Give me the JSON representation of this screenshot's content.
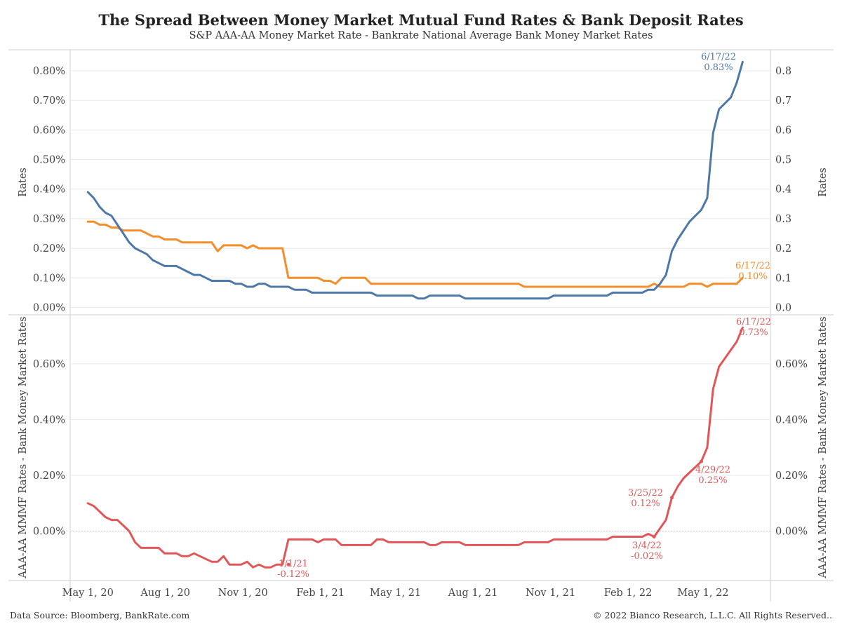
{
  "header": {
    "title": "The Spread Between Money Market Mutual Fund Rates & Bank Deposit Rates",
    "subtitle": "S&P AAA-AA Money Market Rate - Bankrate National Average Bank Money Market Rates"
  },
  "footer": {
    "source": "Data Source: Bloomberg, BankRate.com",
    "copyright": "© 2022 Bianco Research, L.L.C. All Rights Reserved.."
  },
  "colors": {
    "mmmf": "#4e79a7",
    "bank": "#f28e2b",
    "spread": "#e15759",
    "grid": "#e8e8e8"
  },
  "chart_data": [
    {
      "type": "line",
      "ylabel": "Rates",
      "y2label": "Rates",
      "ylim": [
        0,
        0.86
      ],
      "xlim": [
        "2020-04-10",
        "2022-07-20"
      ],
      "x_ticks": [
        {
          "date": "2020-05-01",
          "label": "May 1, 20"
        },
        {
          "date": "2020-08-01",
          "label": "Aug 1, 20"
        },
        {
          "date": "2020-11-01",
          "label": "Nov 1, 20"
        },
        {
          "date": "2021-02-01",
          "label": "Feb 1, 21"
        },
        {
          "date": "2021-05-01",
          "label": "May 1, 21"
        },
        {
          "date": "2021-08-01",
          "label": "Aug 1, 21"
        },
        {
          "date": "2021-11-01",
          "label": "Nov 1, 21"
        },
        {
          "date": "2022-02-01",
          "label": "Feb 1, 22"
        },
        {
          "date": "2022-05-01",
          "label": "May 1, 22"
        }
      ],
      "y_ticks_left": [
        {
          "value": 0.0,
          "label": "0.00%"
        },
        {
          "value": 0.1,
          "label": "0.10%"
        },
        {
          "value": 0.2,
          "label": "0.20%"
        },
        {
          "value": 0.3,
          "label": "0.30%"
        },
        {
          "value": 0.4,
          "label": "0.40%"
        },
        {
          "value": 0.5,
          "label": "0.50%"
        },
        {
          "value": 0.6,
          "label": "0.60%"
        },
        {
          "value": 0.7,
          "label": "0.70%"
        },
        {
          "value": 0.8,
          "label": "0.80%"
        }
      ],
      "y_ticks_right": [
        {
          "value": 0.0,
          "label": "0.0"
        },
        {
          "value": 0.1,
          "label": "0.1"
        },
        {
          "value": 0.2,
          "label": "0.2"
        },
        {
          "value": 0.3,
          "label": "0.3"
        },
        {
          "value": 0.4,
          "label": "0.4"
        },
        {
          "value": 0.5,
          "label": "0.5"
        },
        {
          "value": 0.6,
          "label": "0.6"
        },
        {
          "value": 0.7,
          "label": "0.7"
        },
        {
          "value": 0.8,
          "label": "0.8"
        }
      ],
      "series": [
        {
          "color": "#4e79a7",
          "points": [
            [
              "2020-05-01",
              0.39
            ],
            [
              "2020-05-08",
              0.37
            ],
            [
              "2020-05-15",
              0.34
            ],
            [
              "2020-05-22",
              0.32
            ],
            [
              "2020-05-29",
              0.31
            ],
            [
              "2020-06-05",
              0.28
            ],
            [
              "2020-06-12",
              0.25
            ],
            [
              "2020-06-19",
              0.22
            ],
            [
              "2020-06-26",
              0.2
            ],
            [
              "2020-07-03",
              0.19
            ],
            [
              "2020-07-10",
              0.18
            ],
            [
              "2020-07-17",
              0.16
            ],
            [
              "2020-07-24",
              0.15
            ],
            [
              "2020-07-31",
              0.14
            ],
            [
              "2020-08-14",
              0.14
            ],
            [
              "2020-08-21",
              0.13
            ],
            [
              "2020-08-28",
              0.12
            ],
            [
              "2020-09-04",
              0.11
            ],
            [
              "2020-09-11",
              0.11
            ],
            [
              "2020-09-18",
              0.1
            ],
            [
              "2020-09-25",
              0.09
            ],
            [
              "2020-10-16",
              0.09
            ],
            [
              "2020-10-23",
              0.08
            ],
            [
              "2020-10-30",
              0.08
            ],
            [
              "2020-11-06",
              0.07
            ],
            [
              "2020-11-13",
              0.07
            ],
            [
              "2020-11-20",
              0.08
            ],
            [
              "2020-11-27",
              0.08
            ],
            [
              "2020-12-04",
              0.07
            ],
            [
              "2020-12-25",
              0.07
            ],
            [
              "2021-01-01",
              0.06
            ],
            [
              "2021-01-15",
              0.06
            ],
            [
              "2021-01-22",
              0.05
            ],
            [
              "2021-04-02",
              0.05
            ],
            [
              "2021-04-09",
              0.04
            ],
            [
              "2021-05-21",
              0.04
            ],
            [
              "2021-05-28",
              0.03
            ],
            [
              "2021-06-04",
              0.03
            ],
            [
              "2021-06-11",
              0.04
            ],
            [
              "2021-07-16",
              0.04
            ],
            [
              "2021-07-23",
              0.03
            ],
            [
              "2021-10-29",
              0.03
            ],
            [
              "2021-11-05",
              0.04
            ],
            [
              "2022-01-07",
              0.04
            ],
            [
              "2022-01-14",
              0.05
            ],
            [
              "2022-02-18",
              0.05
            ],
            [
              "2022-02-25",
              0.06
            ],
            [
              "2022-03-04",
              0.06
            ],
            [
              "2022-03-11",
              0.08
            ],
            [
              "2022-03-18",
              0.11
            ],
            [
              "2022-03-25",
              0.19
            ],
            [
              "2022-04-01",
              0.23
            ],
            [
              "2022-04-08",
              0.26
            ],
            [
              "2022-04-15",
              0.29
            ],
            [
              "2022-04-22",
              0.31
            ],
            [
              "2022-04-29",
              0.33
            ],
            [
              "2022-05-06",
              0.37
            ],
            [
              "2022-05-13",
              0.59
            ],
            [
              "2022-05-20",
              0.67
            ],
            [
              "2022-05-27",
              0.69
            ],
            [
              "2022-06-03",
              0.71
            ],
            [
              "2022-06-10",
              0.76
            ],
            [
              "2022-06-17",
              0.83
            ]
          ]
        },
        {
          "color": "#f28e2b",
          "points": [
            [
              "2020-05-01",
              0.29
            ],
            [
              "2020-05-08",
              0.29
            ],
            [
              "2020-05-15",
              0.28
            ],
            [
              "2020-05-22",
              0.28
            ],
            [
              "2020-05-29",
              0.27
            ],
            [
              "2020-06-05",
              0.27
            ],
            [
              "2020-06-12",
              0.26
            ],
            [
              "2020-07-03",
              0.26
            ],
            [
              "2020-07-10",
              0.25
            ],
            [
              "2020-07-17",
              0.24
            ],
            [
              "2020-07-24",
              0.24
            ],
            [
              "2020-07-31",
              0.23
            ],
            [
              "2020-08-14",
              0.23
            ],
            [
              "2020-08-21",
              0.22
            ],
            [
              "2020-09-25",
              0.22
            ],
            [
              "2020-10-02",
              0.19
            ],
            [
              "2020-10-09",
              0.21
            ],
            [
              "2020-10-30",
              0.21
            ],
            [
              "2020-11-06",
              0.2
            ],
            [
              "2020-11-13",
              0.21
            ],
            [
              "2020-11-20",
              0.2
            ],
            [
              "2020-12-18",
              0.2
            ],
            [
              "2020-12-25",
              0.1
            ],
            [
              "2021-01-29",
              0.1
            ],
            [
              "2021-02-05",
              0.09
            ],
            [
              "2021-02-12",
              0.09
            ],
            [
              "2021-02-19",
              0.08
            ],
            [
              "2021-02-26",
              0.1
            ],
            [
              "2021-03-26",
              0.1
            ],
            [
              "2021-04-02",
              0.08
            ],
            [
              "2021-09-24",
              0.08
            ],
            [
              "2021-10-01",
              0.07
            ],
            [
              "2022-02-25",
              0.07
            ],
            [
              "2022-03-04",
              0.08
            ],
            [
              "2022-03-11",
              0.07
            ],
            [
              "2022-04-08",
              0.07
            ],
            [
              "2022-04-15",
              0.08
            ],
            [
              "2022-04-29",
              0.08
            ],
            [
              "2022-05-06",
              0.07
            ],
            [
              "2022-05-13",
              0.08
            ],
            [
              "2022-06-10",
              0.08
            ],
            [
              "2022-06-17",
              0.1
            ]
          ]
        }
      ],
      "annotations": [
        {
          "date": "6/17/22",
          "value": "0.83%",
          "color": "#4e79a7"
        },
        {
          "date": "6/17/22",
          "value": "0.10%",
          "color": "#f28e2b"
        }
      ]
    },
    {
      "type": "line",
      "ylabel": "AAA-AA MMMF Rates - Bank Money Market Rates",
      "y2label": "AAA-AA MMMF Rates - Bank Money Market Rates",
      "ylim": [
        -0.18,
        0.75
      ],
      "xlim": [
        "2020-04-10",
        "2022-07-20"
      ],
      "y_ticks_left": [
        {
          "value": 0.0,
          "label": "0.00%"
        },
        {
          "value": 0.2,
          "label": "0.20%"
        },
        {
          "value": 0.4,
          "label": "0.40%"
        },
        {
          "value": 0.6,
          "label": "0.60%"
        }
      ],
      "y_ticks_right": [
        {
          "value": 0.0,
          "label": "0.00%"
        },
        {
          "value": 0.2,
          "label": "0.20%"
        },
        {
          "value": 0.4,
          "label": "0.40%"
        },
        {
          "value": 0.6,
          "label": "0.60%"
        }
      ],
      "series": [
        {
          "color": "#e15759",
          "points": [
            [
              "2020-05-01",
              0.1
            ],
            [
              "2020-05-08",
              0.09
            ],
            [
              "2020-05-15",
              0.07
            ],
            [
              "2020-05-22",
              0.05
            ],
            [
              "2020-05-29",
              0.04
            ],
            [
              "2020-06-05",
              0.04
            ],
            [
              "2020-06-12",
              0.02
            ],
            [
              "2020-06-19",
              0.0
            ],
            [
              "2020-06-26",
              -0.04
            ],
            [
              "2020-07-03",
              -0.06
            ],
            [
              "2020-07-24",
              -0.06
            ],
            [
              "2020-07-31",
              -0.08
            ],
            [
              "2020-08-14",
              -0.08
            ],
            [
              "2020-08-21",
              -0.09
            ],
            [
              "2020-08-28",
              -0.09
            ],
            [
              "2020-09-04",
              -0.08
            ],
            [
              "2020-09-11",
              -0.09
            ],
            [
              "2020-09-18",
              -0.1
            ],
            [
              "2020-09-25",
              -0.11
            ],
            [
              "2020-10-02",
              -0.11
            ],
            [
              "2020-10-09",
              -0.09
            ],
            [
              "2020-10-16",
              -0.12
            ],
            [
              "2020-10-30",
              -0.12
            ],
            [
              "2020-11-06",
              -0.11
            ],
            [
              "2020-11-13",
              -0.13
            ],
            [
              "2020-11-20",
              -0.12
            ],
            [
              "2020-11-27",
              -0.13
            ],
            [
              "2020-12-04",
              -0.13
            ],
            [
              "2020-12-11",
              -0.12
            ],
            [
              "2020-12-18",
              -0.12
            ],
            [
              "2020-12-25",
              -0.03
            ],
            [
              "2021-01-22",
              -0.03
            ],
            [
              "2021-01-29",
              -0.04
            ],
            [
              "2021-02-05",
              -0.03
            ],
            [
              "2021-02-19",
              -0.03
            ],
            [
              "2021-02-26",
              -0.05
            ],
            [
              "2021-04-02",
              -0.05
            ],
            [
              "2021-04-09",
              -0.03
            ],
            [
              "2021-04-16",
              -0.03
            ],
            [
              "2021-04-23",
              -0.04
            ],
            [
              "2021-06-04",
              -0.04
            ],
            [
              "2021-06-11",
              -0.05
            ],
            [
              "2021-06-18",
              -0.05
            ],
            [
              "2021-06-25",
              -0.04
            ],
            [
              "2021-07-16",
              -0.04
            ],
            [
              "2021-07-23",
              -0.05
            ],
            [
              "2021-09-24",
              -0.05
            ],
            [
              "2021-10-01",
              -0.04
            ],
            [
              "2021-10-29",
              -0.04
            ],
            [
              "2021-11-05",
              -0.03
            ],
            [
              "2022-01-07",
              -0.03
            ],
            [
              "2022-01-14",
              -0.02
            ],
            [
              "2022-02-18",
              -0.02
            ],
            [
              "2022-02-25",
              -0.01
            ],
            [
              "2022-03-04",
              -0.02
            ],
            [
              "2022-03-11",
              0.01
            ],
            [
              "2022-03-18",
              0.04
            ],
            [
              "2022-03-25",
              0.12
            ],
            [
              "2022-04-01",
              0.16
            ],
            [
              "2022-04-08",
              0.19
            ],
            [
              "2022-04-15",
              0.21
            ],
            [
              "2022-04-22",
              0.23
            ],
            [
              "2022-04-29",
              0.25
            ],
            [
              "2022-05-06",
              0.3
            ],
            [
              "2022-05-13",
              0.51
            ],
            [
              "2022-05-20",
              0.59
            ],
            [
              "2022-05-27",
              0.62
            ],
            [
              "2022-06-03",
              0.65
            ],
            [
              "2022-06-10",
              0.68
            ],
            [
              "2022-06-17",
              0.73
            ]
          ]
        }
      ],
      "annotations": [
        {
          "date": "1/1/21",
          "value": "-0.12%",
          "color": "#e15759"
        },
        {
          "date": "3/4/22",
          "value": "-0.02%",
          "color": "#e15759"
        },
        {
          "date": "3/25/22",
          "value": "0.12%",
          "color": "#e15759"
        },
        {
          "date": "4/29/22",
          "value": "0.25%",
          "color": "#e15759"
        },
        {
          "date": "6/17/22",
          "value": "0.73%",
          "color": "#e15759"
        }
      ]
    }
  ]
}
